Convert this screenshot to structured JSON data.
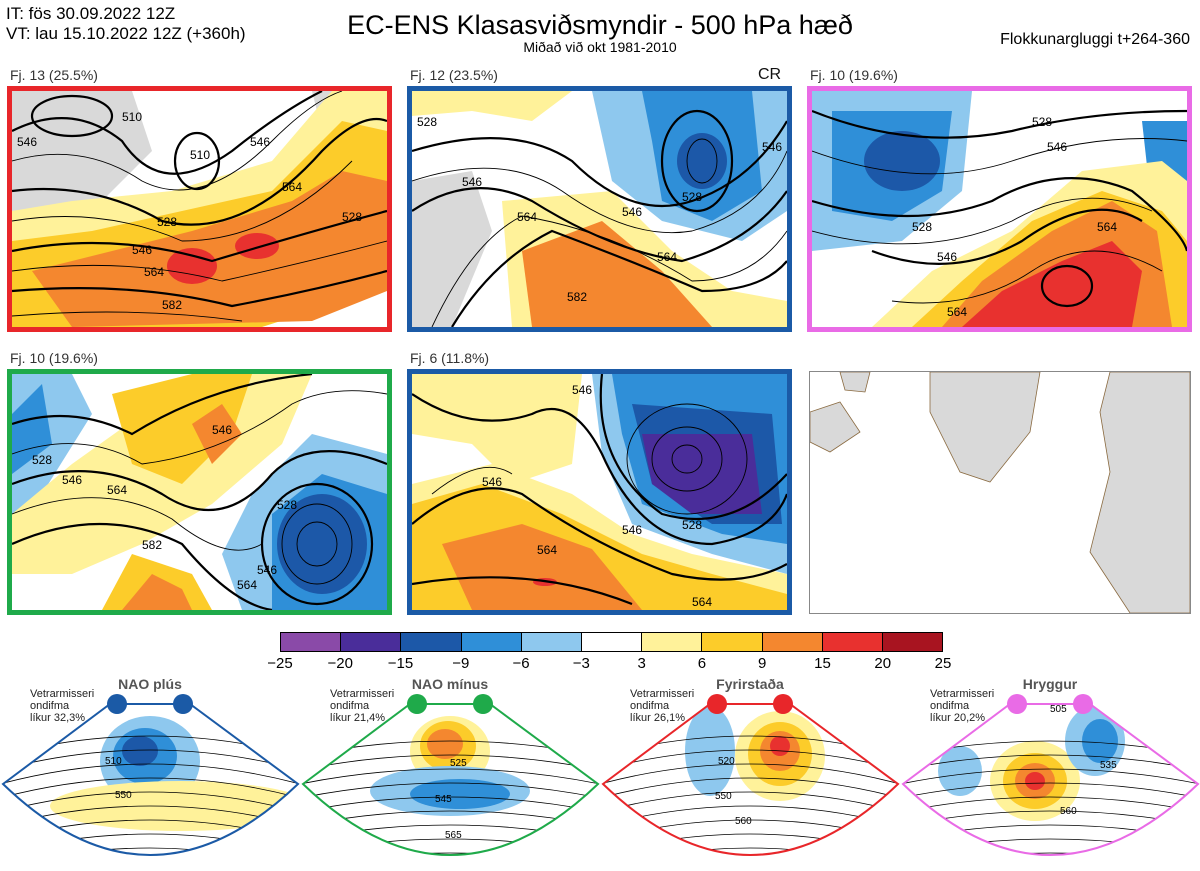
{
  "header": {
    "init_time": "IT: fös 30.09.2022 12Z",
    "valid_time": "VT: lau 15.10.2022 12Z  (+360h)",
    "title": "EC-ENS Klasasviðsmyndir - 500 hPa hæð",
    "subtitle": "Miðað við okt 1981-2010",
    "window": "Flokkunargluggi t+264-360"
  },
  "panels": [
    {
      "label": "Fj. 13 (25.5%)",
      "frame_color": "#e8262a",
      "contours": [
        "510",
        "528",
        "546",
        "564",
        "582",
        "546",
        "564",
        "510",
        "528",
        "546"
      ]
    },
    {
      "label": "Fj. 12 (23.5%)",
      "frame_color": "#1b5aa6",
      "tag": "CR",
      "contours": [
        "546",
        "564",
        "582",
        "528",
        "546",
        "564",
        "546",
        "528"
      ]
    },
    {
      "label": "Fj. 10 (19.6%)",
      "frame_color": "#e96be6",
      "contours": [
        "528",
        "546",
        "564",
        "528",
        "546",
        "564"
      ]
    },
    {
      "label": "Fj. 10 (19.6%)",
      "frame_color": "#1faa4a",
      "contours": [
        "528",
        "546",
        "564",
        "582",
        "546",
        "528",
        "546",
        "564"
      ]
    },
    {
      "label": "Fj. 6 (11.8%)",
      "frame_color": "#1b5aa6",
      "contours": [
        "546",
        "564",
        "528",
        "546",
        "564",
        "546"
      ]
    }
  ],
  "colorbar": {
    "ticks": [
      "−25",
      "−20",
      "−15",
      "−9",
      "−6",
      "−3",
      "3",
      "6",
      "9",
      "15",
      "20",
      "25"
    ],
    "colors": [
      "#8a4aa8",
      "#4a2d9a",
      "#1c58a8",
      "#2f8fd8",
      "#8ec8ee",
      "#ffffff",
      "#fff29a",
      "#fccc2a",
      "#f4872f",
      "#e8312f",
      "#a81420"
    ]
  },
  "regimes": [
    {
      "name": "NAO plús",
      "prob_line1": "Vetrarmisseri",
      "prob_line2": "ondifma",
      "prob_line3": "líkur 32,3%",
      "color": "#1b5aa6",
      "contours": [
        "510",
        "550"
      ]
    },
    {
      "name": "NAO mínus",
      "prob_line1": "Vetrarmisseri",
      "prob_line2": "ondifma",
      "prob_line3": "líkur 21,4%",
      "color": "#1faa4a",
      "contours": [
        "525",
        "545",
        "565"
      ]
    },
    {
      "name": "Fyrirstaða",
      "prob_line1": "Vetrarmisseri",
      "prob_line2": "ondifma",
      "prob_line3": "líkur 26,1%",
      "color": "#e8262a",
      "contours": [
        "520",
        "550",
        "560"
      ]
    },
    {
      "name": "Hryggur",
      "prob_line1": "Vetrarmisseri",
      "prob_line2": "ondifma",
      "prob_line3": "líkur 20,2%",
      "color": "#e96be6",
      "contours": [
        "505",
        "535",
        "560"
      ]
    }
  ]
}
